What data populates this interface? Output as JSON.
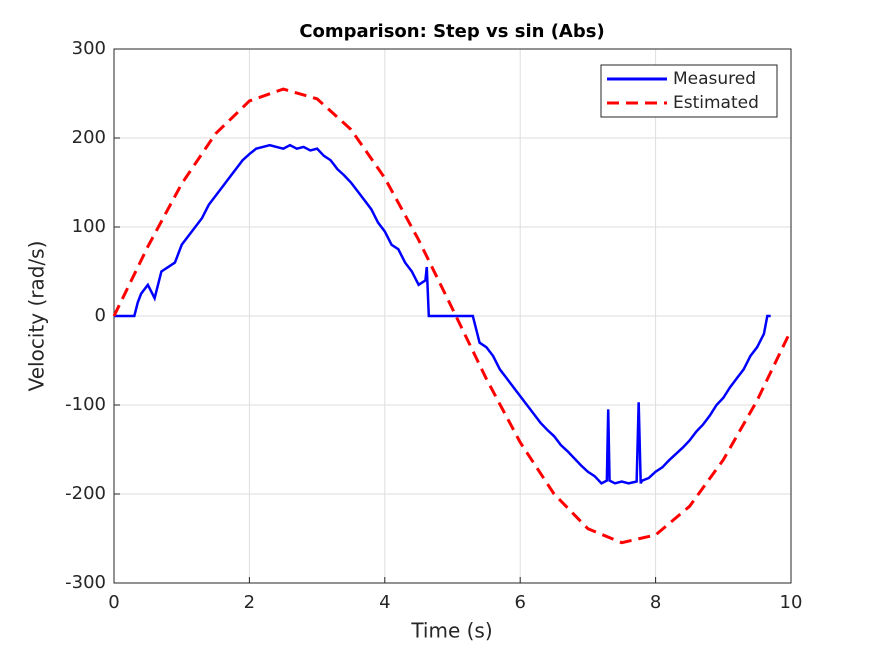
{
  "chart_data": {
    "type": "line",
    "title": "Comparison: Step vs sin (Abs)",
    "x_label": "Time (s)",
    "y_label": "Velocity (rad/s)",
    "xlim": [
      0,
      10
    ],
    "xticks": [
      0,
      2,
      4,
      6,
      8,
      10
    ],
    "ylim": [
      -300,
      300
    ],
    "yticks": [
      -300,
      -200,
      -100,
      0,
      100,
      200,
      300
    ],
    "grid": true,
    "legend_position": "upper-right",
    "series": [
      {
        "name": "Measured",
        "color": "#0000ff",
        "style": "solid",
        "x": [
          0,
          0.1,
          0.2,
          0.3,
          0.35,
          0.4,
          0.5,
          0.6,
          0.7,
          0.8,
          0.9,
          1.0,
          1.1,
          1.2,
          1.3,
          1.4,
          1.5,
          1.6,
          1.7,
          1.8,
          1.9,
          2.0,
          2.1,
          2.2,
          2.3,
          2.4,
          2.5,
          2.6,
          2.7,
          2.8,
          2.9,
          3.0,
          3.1,
          3.2,
          3.3,
          3.4,
          3.5,
          3.6,
          3.7,
          3.8,
          3.9,
          4.0,
          4.1,
          4.2,
          4.3,
          4.4,
          4.5,
          4.6,
          4.62,
          4.65,
          5.3,
          5.35,
          5.4,
          5.5,
          5.6,
          5.7,
          5.8,
          5.9,
          6.0,
          6.1,
          6.2,
          6.3,
          6.4,
          6.5,
          6.6,
          6.7,
          6.8,
          6.9,
          7.0,
          7.1,
          7.2,
          7.28,
          7.3,
          7.32,
          7.4,
          7.5,
          7.6,
          7.72,
          7.75,
          7.78,
          7.8,
          7.9,
          8.0,
          8.1,
          8.2,
          8.3,
          8.4,
          8.5,
          8.6,
          8.7,
          8.8,
          8.9,
          9.0,
          9.1,
          9.2,
          9.3,
          9.4,
          9.5,
          9.6,
          9.65,
          9.7
        ],
        "values": [
          0,
          0,
          0,
          0,
          15,
          25,
          35,
          20,
          50,
          55,
          60,
          80,
          90,
          100,
          110,
          125,
          135,
          145,
          155,
          165,
          175,
          182,
          188,
          190,
          192,
          190,
          188,
          192,
          188,
          190,
          186,
          188,
          180,
          175,
          165,
          158,
          150,
          140,
          130,
          120,
          105,
          95,
          80,
          75,
          60,
          50,
          35,
          40,
          55,
          0,
          0,
          -15,
          -30,
          -35,
          -45,
          -60,
          -70,
          -80,
          -90,
          -100,
          -110,
          -120,
          -128,
          -135,
          -145,
          -152,
          -160,
          -168,
          -175,
          -180,
          -188,
          -185,
          -105,
          -185,
          -188,
          -186,
          -188,
          -186,
          -97,
          -188,
          -185,
          -182,
          -175,
          -170,
          -162,
          -155,
          -148,
          -140,
          -130,
          -122,
          -112,
          -100,
          -92,
          -80,
          -70,
          -60,
          -45,
          -35,
          -20,
          0,
          0
        ]
      },
      {
        "name": "Estimated",
        "color": "#ff0000",
        "style": "dashed",
        "x": [
          0,
          0.5,
          1,
          1.5,
          2,
          2.5,
          3,
          3.5,
          4,
          4.5,
          5,
          5.5,
          6,
          6.5,
          7,
          7.5,
          8,
          8.5,
          9,
          9.5,
          10
        ],
        "values": [
          0,
          78,
          148.6,
          204.8,
          241.6,
          255,
          244,
          209.6,
          155,
          85.5,
          8,
          -70.6,
          -142,
          -200,
          -239,
          -254.7,
          -246,
          -214,
          -161.6,
          -94.8,
          -15.9
        ]
      }
    ]
  }
}
